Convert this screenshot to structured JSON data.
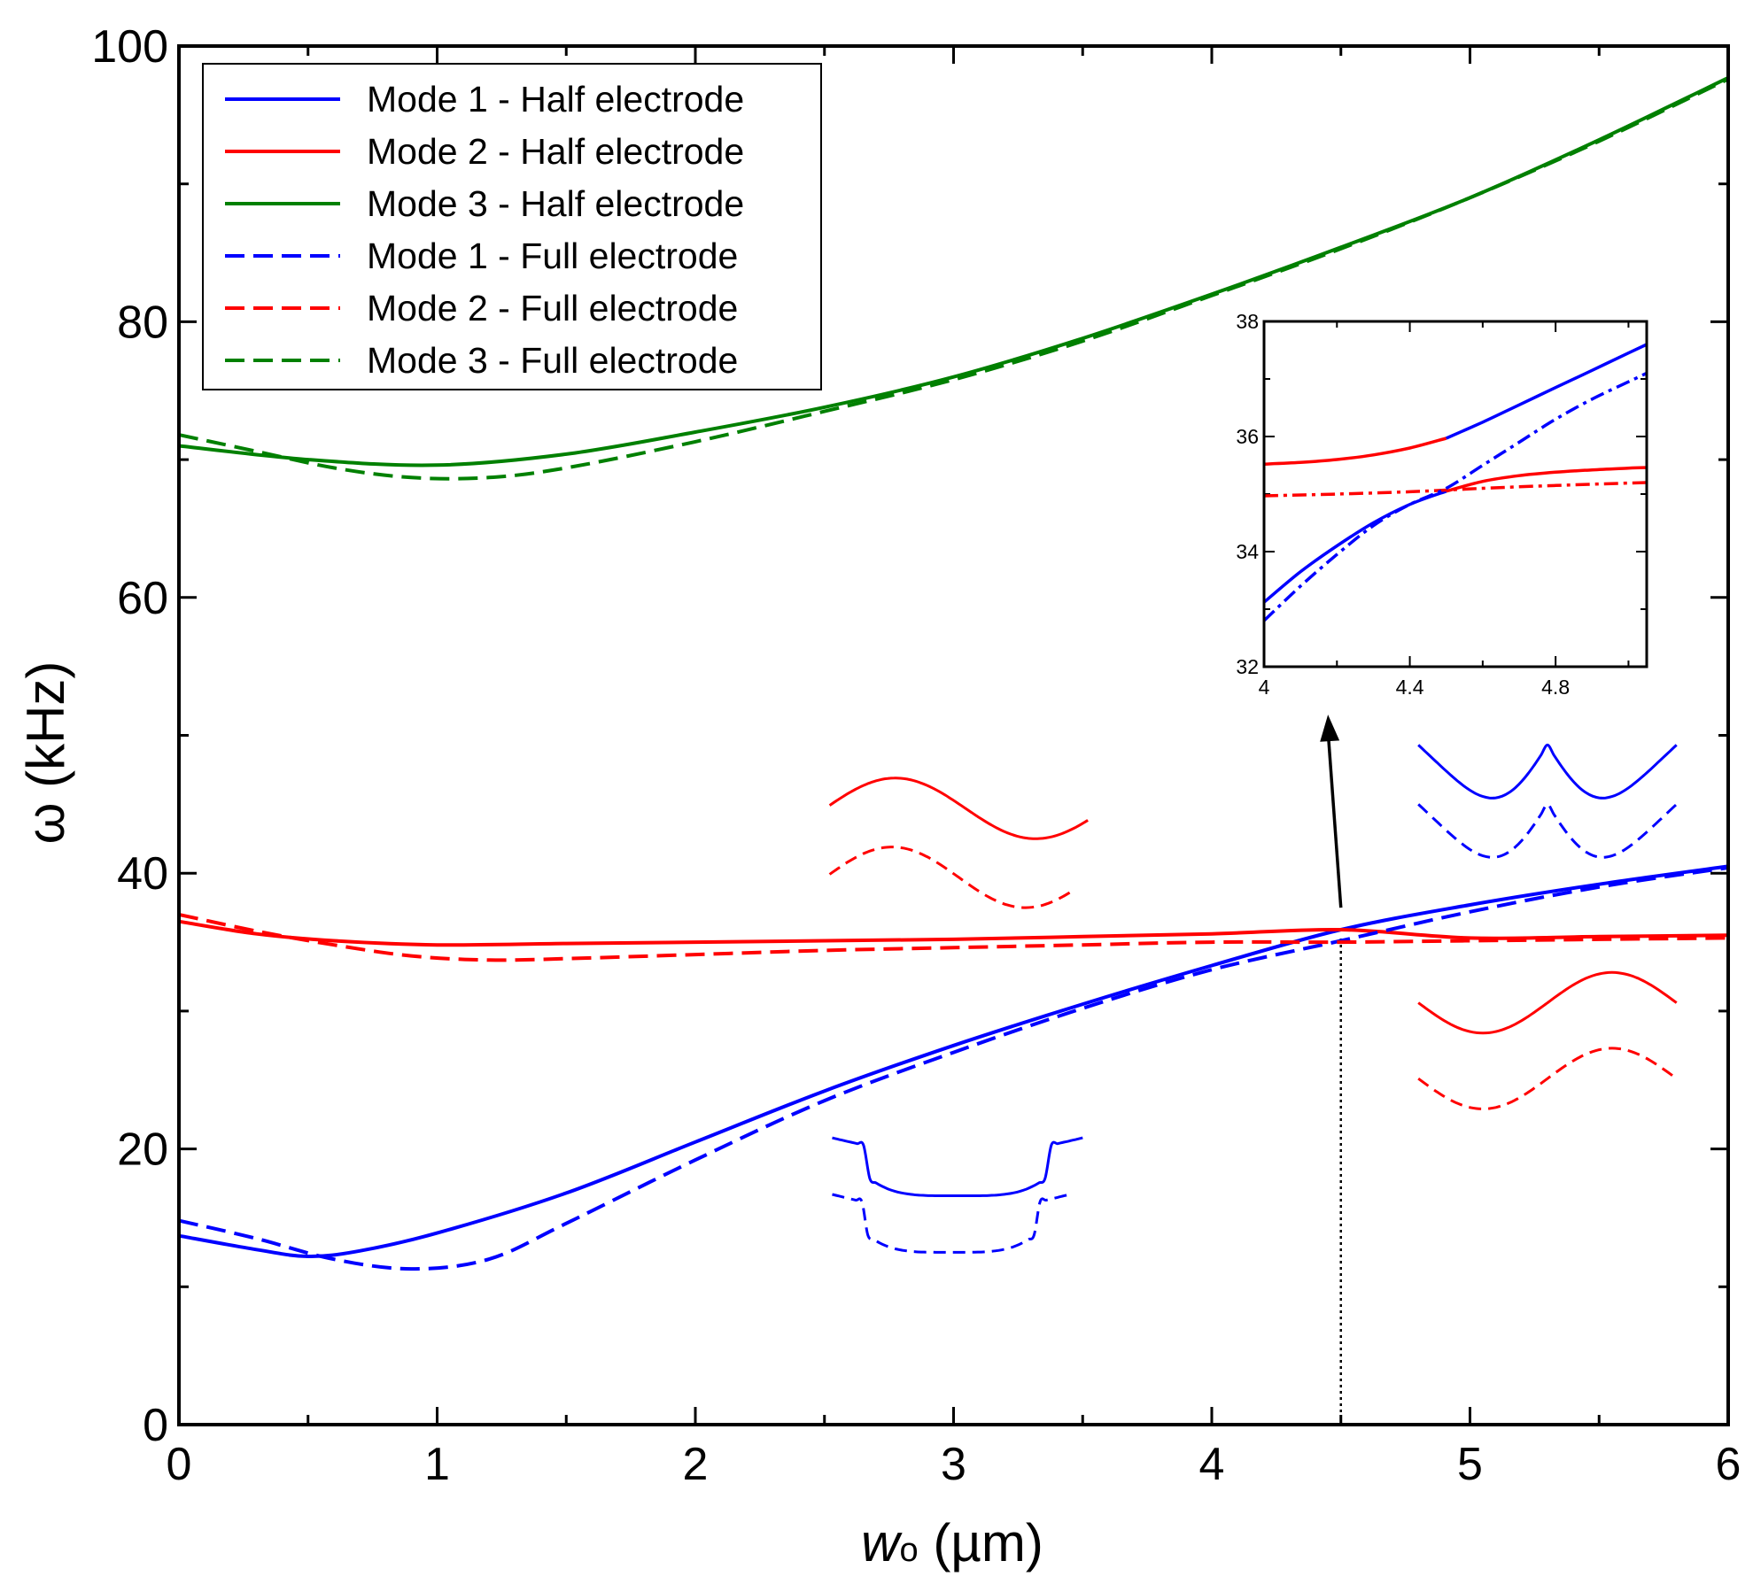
{
  "chart_data": {
    "type": "line",
    "xlabel": "w",
    "xlabel_sub": "o",
    "xlabel_unit": "(µm)",
    "ylabel": "ω (kHz)",
    "xlim": [
      0,
      6
    ],
    "ylim": [
      0,
      100
    ],
    "xticks": [
      "0",
      "1",
      "2",
      "3",
      "4",
      "5",
      "6"
    ],
    "yticks": [
      "0",
      "20",
      "40",
      "60",
      "80",
      "100"
    ],
    "grid": false,
    "legend_position": "top-left",
    "colors": {
      "mode1": "#0000ff",
      "mode2": "#ff0000",
      "mode3": "#008000",
      "axis": "#000000"
    },
    "series": [
      {
        "name": "Mode 1 - Half electrode",
        "color": "#0000ff",
        "style": "solid",
        "x": [
          0,
          0.3,
          0.5,
          0.7,
          1.0,
          1.5,
          2.0,
          2.5,
          3.0,
          3.5,
          4.0,
          4.5,
          5.0,
          5.5,
          6.0
        ],
        "y": [
          13.7,
          12.7,
          12.2,
          12.6,
          13.9,
          16.8,
          20.5,
          24.2,
          27.5,
          30.5,
          33.3,
          35.9,
          37.7,
          39.2,
          40.5
        ]
      },
      {
        "name": "Mode 2 - Half electrode",
        "color": "#ff0000",
        "style": "solid",
        "x": [
          0,
          0.3,
          0.6,
          1.0,
          1.5,
          2.0,
          2.5,
          3.0,
          3.5,
          4.0,
          4.5,
          5.0,
          5.5,
          6.0
        ],
        "y": [
          36.5,
          35.6,
          35.1,
          34.8,
          34.9,
          35.0,
          35.1,
          35.2,
          35.4,
          35.6,
          35.9,
          35.3,
          35.4,
          35.5
        ]
      },
      {
        "name": "Mode 3 - Half electrode",
        "color": "#008000",
        "style": "solid",
        "x": [
          0,
          0.5,
          1.0,
          1.5,
          2.0,
          2.5,
          3.0,
          3.5,
          4.0,
          4.5,
          5.0,
          5.5,
          6.0
        ],
        "y": [
          71.0,
          70.0,
          69.6,
          70.4,
          72.0,
          73.8,
          76.0,
          78.8,
          82.0,
          85.4,
          89.0,
          93.2,
          97.7
        ]
      },
      {
        "name": "Mode 1 - Full electrode",
        "color": "#0000ff",
        "style": "dashed",
        "x": [
          0,
          0.3,
          0.6,
          0.9,
          1.2,
          1.5,
          2.0,
          2.5,
          3.0,
          3.5,
          4.0,
          4.5,
          5.0,
          5.5,
          6.0
        ],
        "y": [
          14.8,
          13.5,
          12.0,
          11.3,
          12.0,
          14.6,
          19.2,
          23.5,
          27.0,
          30.2,
          33.0,
          35.1,
          37.2,
          39.0,
          40.4
        ]
      },
      {
        "name": "Mode 2 - Full electrode",
        "color": "#ff0000",
        "style": "dashed",
        "x": [
          0,
          0.3,
          0.6,
          0.9,
          1.2,
          1.5,
          2.0,
          2.5,
          3.0,
          3.5,
          4.0,
          4.5,
          5.0,
          5.5,
          6.0
        ],
        "y": [
          37.0,
          35.8,
          34.8,
          34.0,
          33.7,
          33.8,
          34.1,
          34.4,
          34.6,
          34.8,
          35.0,
          35.0,
          35.1,
          35.2,
          35.3
        ]
      },
      {
        "name": "Mode 3 - Full electrode",
        "color": "#008000",
        "style": "dashed",
        "x": [
          0,
          0.3,
          0.6,
          0.9,
          1.2,
          1.5,
          2.0,
          2.5,
          3.0,
          3.5,
          4.0,
          4.5,
          5.0,
          5.5,
          6.0
        ],
        "y": [
          71.8,
          70.6,
          69.4,
          68.7,
          68.7,
          69.4,
          71.3,
          73.5,
          75.8,
          78.6,
          81.9,
          85.3,
          89.0,
          93.1,
          97.6
        ]
      }
    ],
    "reference_line": {
      "x": 4.5,
      "y_from": 0,
      "y_to": 35.3,
      "style": "dotted"
    },
    "arrow": {
      "from": [
        4.5,
        37.5
      ],
      "to": [
        4.45,
        51.5
      ]
    },
    "inset": {
      "xlim": [
        4,
        5.05
      ],
      "ylim": [
        32,
        38
      ],
      "xticks": [
        "4",
        "4.4",
        "4.8"
      ],
      "yticks": [
        "32",
        "34",
        "36",
        "38"
      ],
      "series": [
        {
          "name": "Mode 2 - Half electrode",
          "color": "#ff0000",
          "style": "solid",
          "x": [
            4.0,
            4.1,
            4.2,
            4.3,
            4.4,
            4.5
          ],
          "y": [
            35.52,
            35.55,
            35.6,
            35.68,
            35.8,
            35.97
          ]
        },
        {
          "name": "Mode 1 - Half electrode",
          "color": "#0000ff",
          "style": "solid",
          "x": [
            4.5,
            4.6,
            4.7,
            4.8,
            4.9,
            5.0,
            5.05
          ],
          "y": [
            35.97,
            36.25,
            36.55,
            36.85,
            37.15,
            37.45,
            37.6
          ]
        },
        {
          "name": "Mode 1 - Half electrode",
          "color": "#0000ff",
          "style": "solid",
          "x": [
            4.0,
            4.1,
            4.2,
            4.3,
            4.4,
            4.5
          ],
          "y": [
            33.12,
            33.65,
            34.1,
            34.5,
            34.82,
            35.05
          ]
        },
        {
          "name": "Mode 2 - Half electrode",
          "color": "#ff0000",
          "style": "solid",
          "x": [
            4.5,
            4.6,
            4.7,
            4.8,
            4.9,
            5.0,
            5.05
          ],
          "y": [
            35.05,
            35.22,
            35.32,
            35.38,
            35.42,
            35.45,
            35.46
          ]
        },
        {
          "name": "Mode 2 - Full electrode",
          "color": "#ff0000",
          "style": "dashed",
          "x": [
            4.0,
            4.2,
            4.4,
            4.5,
            4.6,
            4.8,
            5.05
          ],
          "y": [
            34.97,
            35.0,
            35.04,
            35.07,
            35.1,
            35.15,
            35.2
          ]
        },
        {
          "name": "Mode 1 - Full electrode",
          "color": "#0000ff",
          "style": "dashed",
          "x": [
            4.0,
            4.1,
            4.2,
            4.3,
            4.4,
            4.5,
            4.6,
            4.7,
            4.8,
            4.9,
            5.0,
            5.05
          ],
          "y": [
            32.8,
            33.4,
            33.95,
            34.45,
            34.82,
            35.1,
            35.5,
            35.9,
            36.3,
            36.65,
            36.95,
            37.1
          ]
        }
      ]
    },
    "mode_shape_glyphs": [
      {
        "name": "mode-2-shape-low",
        "color": "#ff0000",
        "x_range": [
          2.52,
          3.52
        ],
        "y_center": 44.7,
        "amplitude": 2.2,
        "shape": "sine",
        "style": "solid"
      },
      {
        "name": "mode-2-shape-low",
        "color": "#ff0000",
        "x_range": [
          2.52,
          3.47
        ],
        "y_center": 39.7,
        "amplitude": 2.2,
        "shape": "sine",
        "style": "dashed"
      },
      {
        "name": "mode-1-shape-low",
        "color": "#0000ff",
        "x_range": [
          2.53,
          3.5
        ],
        "y_center": 18.7,
        "amplitude": 2.1,
        "shape": "bowl",
        "style": "solid"
      },
      {
        "name": "mode-1-shape-low",
        "color": "#0000ff",
        "x_range": [
          2.53,
          3.45
        ],
        "y_center": 14.6,
        "amplitude": 2.1,
        "shape": "bowl",
        "style": "dashed"
      },
      {
        "name": "mode-1-shape-high",
        "color": "#0000ff",
        "x_range": [
          4.8,
          5.8
        ],
        "y_center": 47.1,
        "amplitude": 2.2,
        "shape": "w",
        "style": "solid"
      },
      {
        "name": "mode-1-shape-high",
        "color": "#0000ff",
        "x_range": [
          4.8,
          5.8
        ],
        "y_center": 42.8,
        "amplitude": 2.2,
        "shape": "w",
        "style": "dashed"
      },
      {
        "name": "mode-2-shape-high",
        "color": "#ff0000",
        "x_range": [
          4.8,
          5.8
        ],
        "y_center": 30.6,
        "amplitude": 2.2,
        "shape": "neg-sine",
        "style": "solid"
      },
      {
        "name": "mode-2-shape-high",
        "color": "#ff0000",
        "x_range": [
          4.8,
          5.8
        ],
        "y_center": 25.1,
        "amplitude": 2.2,
        "shape": "neg-sine",
        "style": "dashed"
      }
    ]
  }
}
